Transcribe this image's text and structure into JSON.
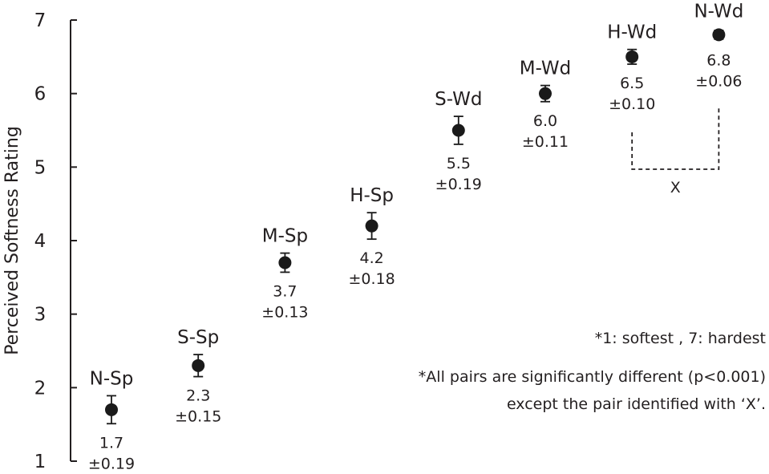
{
  "chart_data": {
    "type": "scatter",
    "title": "",
    "xlabel": "",
    "ylabel": "Perceived Softness Rating",
    "ylim": [
      1,
      7
    ],
    "yticks": [
      "1",
      "2",
      "3",
      "4",
      "5",
      "6",
      "7"
    ],
    "grid": false,
    "points": [
      {
        "label": "N-Sp",
        "value": 1.7,
        "error": 0.19,
        "value_text": "1.7",
        "error_text": "±0.19"
      },
      {
        "label": "S-Sp",
        "value": 2.3,
        "error": 0.15,
        "value_text": "2.3",
        "error_text": "±0.15"
      },
      {
        "label": "M-Sp",
        "value": 3.7,
        "error": 0.13,
        "value_text": "3.7",
        "error_text": "±0.13"
      },
      {
        "label": "H-Sp",
        "value": 4.2,
        "error": 0.18,
        "value_text": "4.2",
        "error_text": "±0.18"
      },
      {
        "label": "S-Wd",
        "value": 5.5,
        "error": 0.19,
        "value_text": "5.5",
        "error_text": "±0.19"
      },
      {
        "label": "M-Wd",
        "value": 6.0,
        "error": 0.11,
        "value_text": "6.0",
        "error_text": "±0.11"
      },
      {
        "label": "H-Wd",
        "value": 6.5,
        "error": 0.1,
        "value_text": "6.5",
        "error_text": "±0.10"
      },
      {
        "label": "N-Wd",
        "value": 6.8,
        "error": 0.06,
        "value_text": "6.8",
        "error_text": "±0.06"
      }
    ],
    "bracket": {
      "between": [
        "H-Wd",
        "N-Wd"
      ],
      "label": "X"
    },
    "annotations": [
      "*1: softest ,  7: hardest",
      "*All pairs are significantly different (p<0.001)",
      "except the pair identified with ‘X’."
    ],
    "colors": {
      "marker": "#1a1a1a",
      "text": "#231f20"
    }
  }
}
